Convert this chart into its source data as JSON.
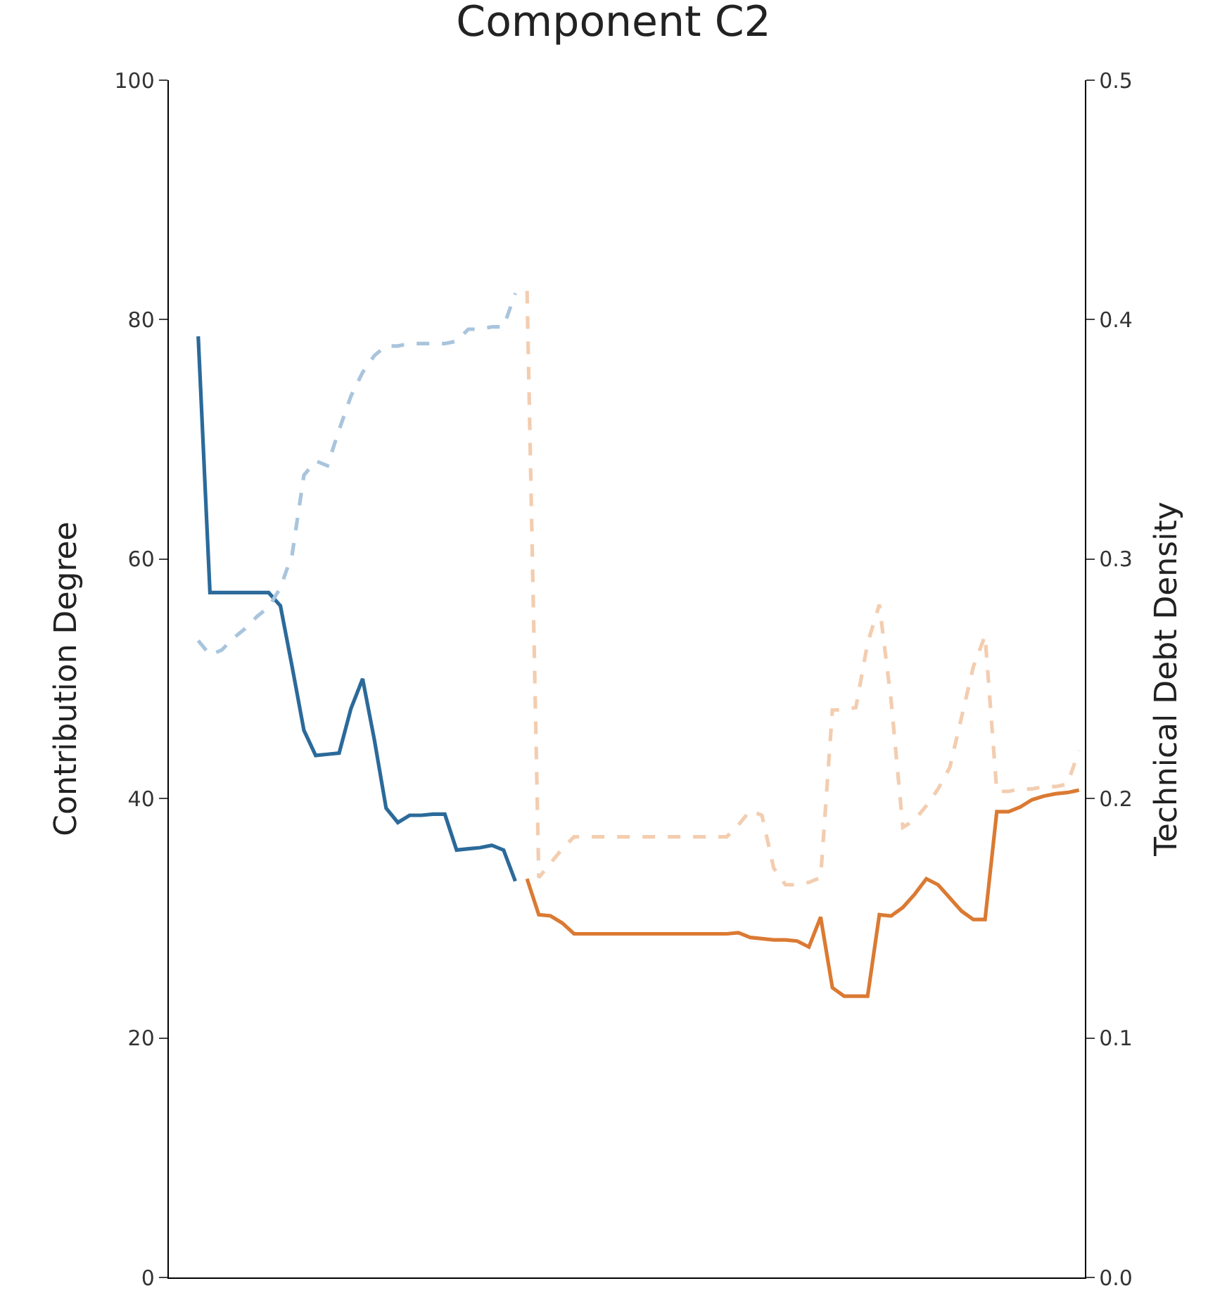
{
  "chart_data": {
    "type": "line",
    "title": "Component C2",
    "ylabel": "Contribution Degree",
    "y2label": "Technical Debt Density",
    "categories": [
      null,
      null,
      null,
      null,
      null,
      null,
      null,
      null,
      null,
      null,
      null,
      null,
      null,
      null,
      null,
      null,
      null,
      null,
      null,
      null,
      null,
      null,
      null,
      null,
      null,
      null,
      null,
      null,
      null,
      null,
      null,
      null,
      null,
      null,
      null,
      null,
      null,
      null,
      null,
      null,
      null,
      null,
      null,
      null,
      null,
      null,
      null,
      null,
      null,
      null,
      null,
      null,
      null,
      null,
      null,
      null,
      null,
      null,
      null,
      null,
      null,
      null,
      null,
      null,
      null,
      null,
      null,
      null,
      null,
      null,
      null,
      null,
      null,
      null,
      null,
      null,
      null,
      null
    ],
    "ylim": [
      0,
      100
    ],
    "yticks": [
      0,
      20,
      40,
      60,
      80,
      100
    ],
    "y2lim": [
      0,
      0.5
    ],
    "y2ticks": [
      {
        "value": 0,
        "label": "0.0"
      },
      0.1,
      0.2,
      0.3,
      0.4,
      0.5
    ],
    "marker": "none",
    "series": [
      {
        "color": "#2b6a9a",
        "line_style": "solid",
        "values": [
          null,
          null,
          78.6,
          57.2,
          57.2,
          57.2,
          57.2,
          57.2,
          57.2,
          56.1,
          51.0,
          45.7,
          43.6,
          43.7,
          43.8,
          47.5,
          50.0,
          44.9,
          39.2,
          38.0,
          38.6,
          38.6,
          38.7,
          38.7,
          35.7,
          35.8,
          35.9,
          36.1,
          35.7,
          33.1,
          null,
          null,
          null,
          null,
          null,
          null,
          null,
          null,
          null,
          null,
          null,
          null,
          null,
          null,
          null,
          null,
          null,
          null,
          null,
          null,
          null,
          null,
          null,
          null,
          null,
          null,
          null,
          null,
          null,
          null,
          null,
          null,
          null,
          null,
          null,
          null,
          null,
          null,
          null,
          null,
          null,
          null,
          null,
          null,
          null,
          null,
          null,
          null
        ]
      },
      {
        "color": "#a9c5dd",
        "line_style": "dashed",
        "axis": "y2",
        "values": [
          null,
          null,
          0.266,
          0.26,
          0.262,
          0.267,
          0.271,
          0.276,
          0.28,
          0.288,
          0.302,
          0.335,
          0.341,
          0.339,
          0.354,
          0.368,
          0.378,
          0.385,
          0.389,
          0.389,
          0.39,
          0.39,
          0.39,
          0.39,
          0.391,
          0.396,
          0.396,
          0.397,
          0.397,
          0.411,
          null,
          null,
          null,
          null,
          null,
          null,
          null,
          null,
          null,
          null,
          null,
          null,
          null,
          null,
          null,
          null,
          null,
          null,
          null,
          null,
          null,
          null,
          null,
          null,
          null,
          null,
          null,
          null,
          null,
          null,
          null,
          null,
          null,
          null,
          null,
          null,
          null,
          null,
          null,
          null,
          null,
          null,
          null,
          null,
          null,
          null,
          null,
          null
        ]
      },
      {
        "color": "#db7a33",
        "line_style": "solid",
        "values": [
          null,
          null,
          null,
          null,
          null,
          null,
          null,
          null,
          null,
          null,
          null,
          null,
          null,
          null,
          null,
          null,
          null,
          null,
          null,
          null,
          null,
          null,
          null,
          null,
          null,
          null,
          null,
          null,
          null,
          null,
          33.3,
          30.3,
          30.2,
          29.6,
          28.7,
          28.7,
          28.7,
          28.7,
          28.7,
          28.7,
          28.7,
          28.7,
          28.7,
          28.7,
          28.7,
          28.7,
          28.7,
          28.7,
          28.8,
          28.4,
          28.3,
          28.2,
          28.2,
          28.1,
          27.6,
          30.1,
          24.2,
          23.5,
          23.5,
          23.5,
          30.3,
          30.2,
          30.9,
          32.0,
          33.3,
          32.8,
          31.7,
          30.6,
          29.9,
          29.9,
          38.9,
          38.9,
          39.3,
          39.9,
          40.2,
          40.4,
          40.5,
          40.7
        ]
      },
      {
        "color": "#f3cdb0",
        "line_style": "dashed",
        "axis": "y2",
        "values": [
          null,
          null,
          null,
          null,
          null,
          null,
          null,
          null,
          null,
          null,
          null,
          null,
          null,
          null,
          null,
          null,
          null,
          null,
          null,
          null,
          null,
          null,
          null,
          null,
          null,
          null,
          null,
          null,
          null,
          null,
          0.412,
          0.167,
          0.173,
          0.179,
          0.184,
          0.184,
          0.184,
          0.184,
          0.184,
          0.184,
          0.184,
          0.184,
          0.184,
          0.184,
          0.184,
          0.184,
          0.184,
          0.184,
          0.189,
          0.195,
          0.193,
          0.171,
          0.164,
          0.164,
          0.165,
          0.167,
          0.237,
          0.237,
          0.238,
          0.265,
          0.281,
          0.241,
          0.188,
          0.191,
          0.197,
          0.204,
          0.213,
          0.234,
          0.255,
          0.268,
          0.203,
          0.203,
          0.204,
          0.204,
          0.205,
          0.205,
          0.206,
          0.22
        ]
      }
    ]
  }
}
